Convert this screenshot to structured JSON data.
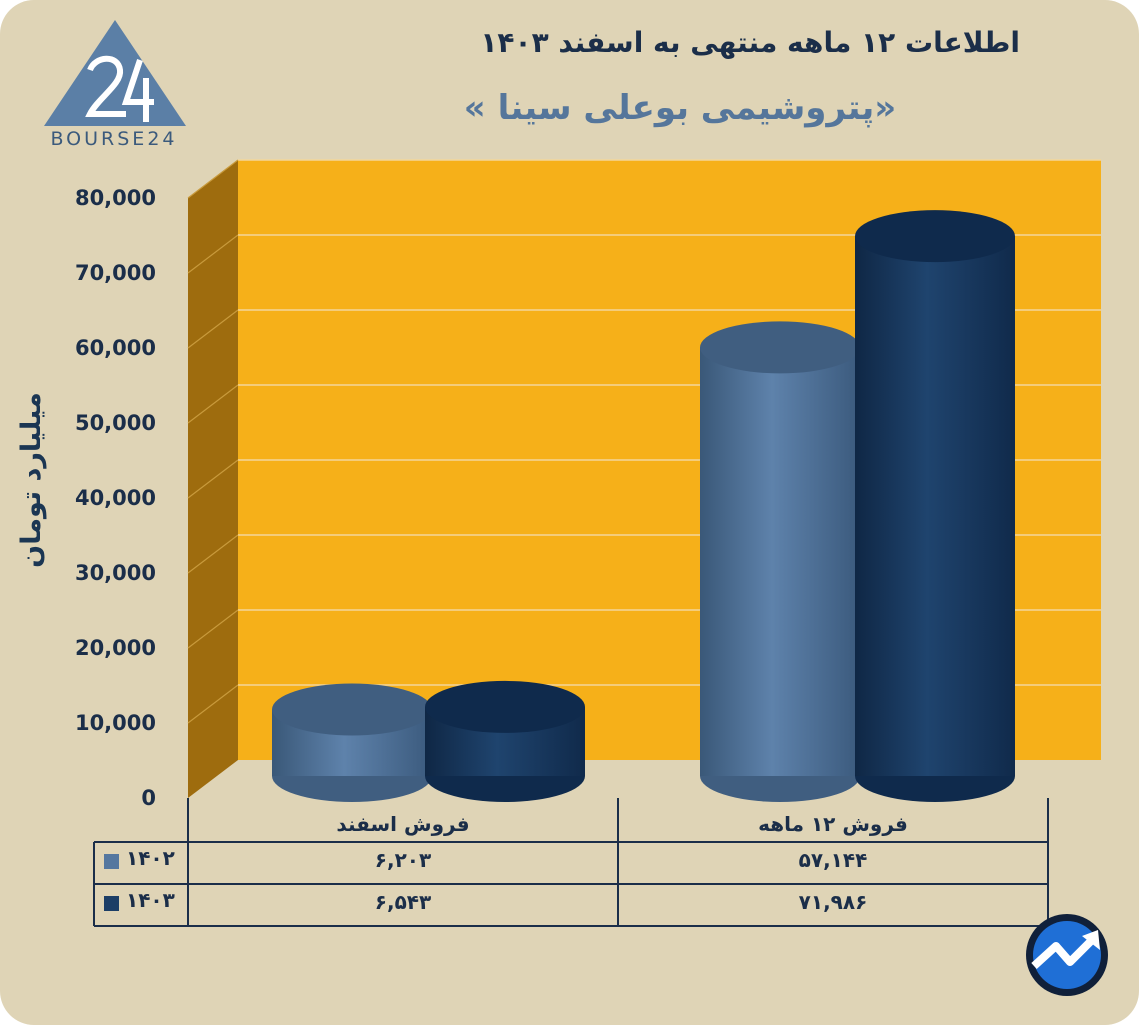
{
  "header": {
    "title": "اطلاعات ۱۲ ماهه منتهی به اسفند ۱۴۰۳",
    "subtitle": "«پتروشیمی بوعلی سینا »",
    "logo_text": "BOURSE24"
  },
  "chart_data": {
    "type": "bar",
    "title": "اطلاعات ۱۲ ماهه منتهی به اسفند ۱۴۰۳",
    "subtitle": "«پتروشیمی بوعلی سینا »",
    "ylabel": "میلیارد تومان",
    "ylim": [
      0,
      80000
    ],
    "yticks": [
      0,
      10000,
      20000,
      30000,
      40000,
      50000,
      60000,
      70000,
      80000
    ],
    "ytick_labels": [
      "0",
      "10,000",
      "20,000",
      "30,000",
      "40,000",
      "50,000",
      "60,000",
      "70,000",
      "80,000"
    ],
    "categories": [
      "فروش اسفند",
      "فروش ۱۲ ماهه"
    ],
    "series": [
      {
        "name": "۱۴۰۲",
        "values": [
          6203,
          57144
        ],
        "labels": [
          "۶,۲۰۳",
          "۵۷,۱۴۴"
        ],
        "color": "#54779f"
      },
      {
        "name": "۱۴۰۳",
        "values": [
          6543,
          71986
        ],
        "labels": [
          "۶,۵۴۳",
          "۷۱,۹۸۶"
        ],
        "color": "#1c3e66"
      }
    ],
    "grid": true,
    "legend": "data-table"
  },
  "colors": {
    "background": "#dfd4b6",
    "plot_back": "#f6b019",
    "plot_side": "#9e6c0e",
    "text_dark": "#1b2e49"
  }
}
